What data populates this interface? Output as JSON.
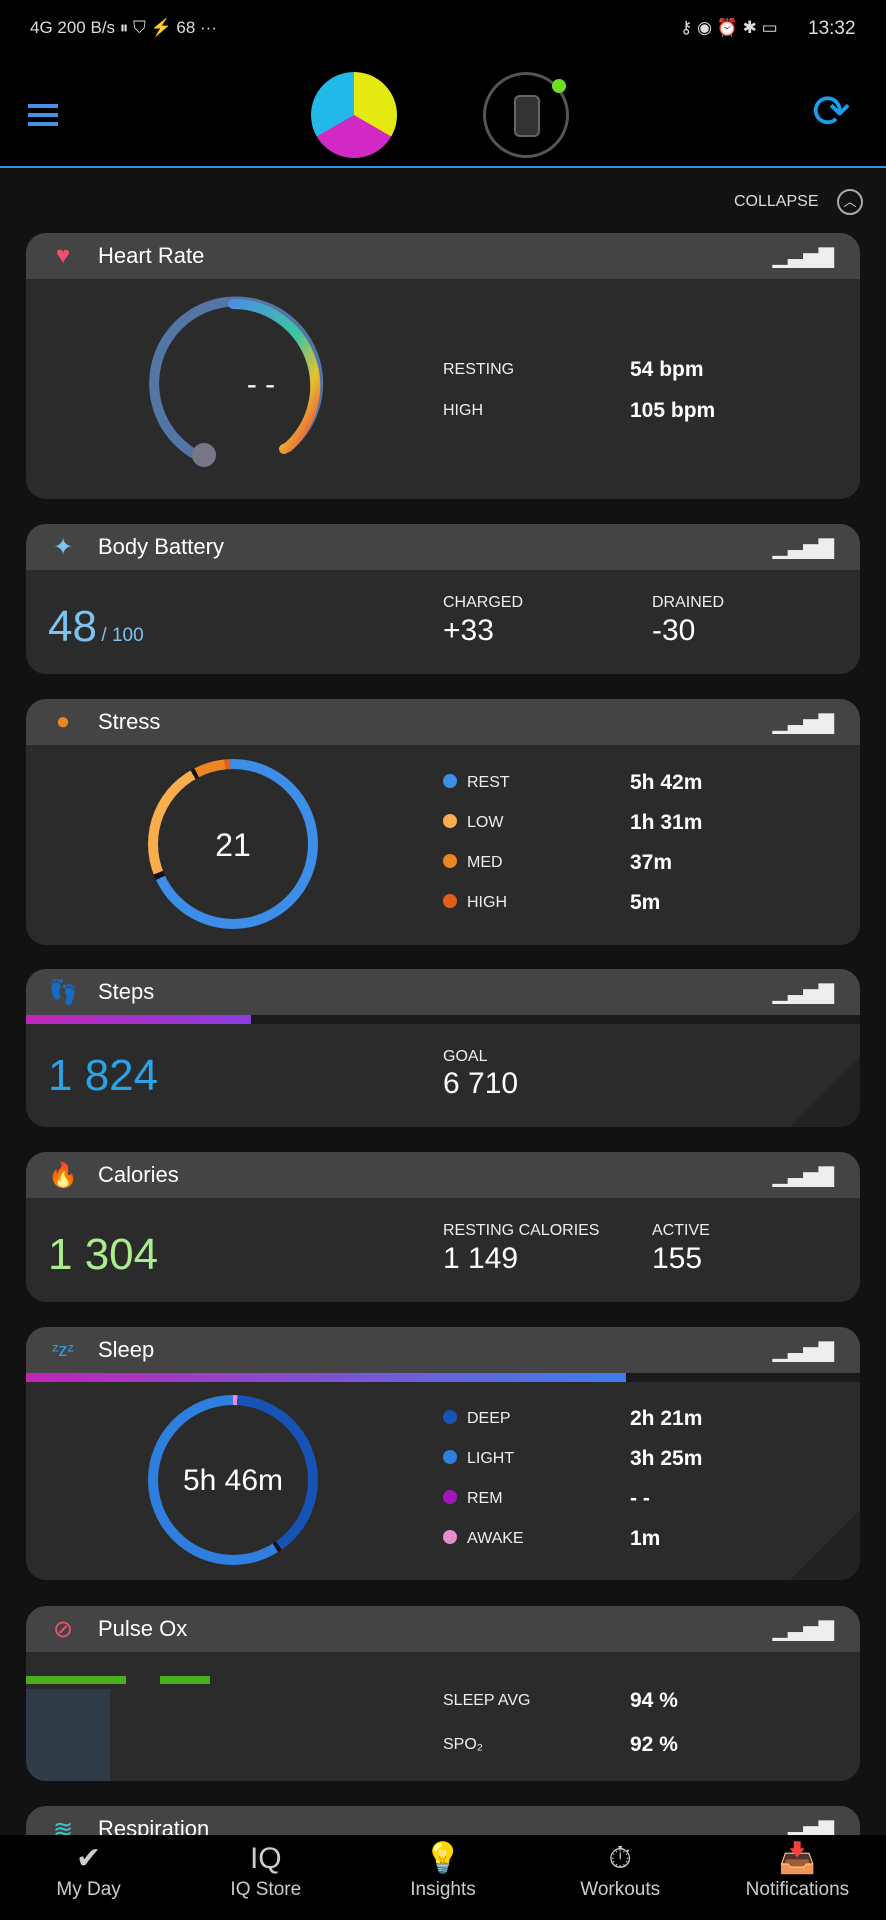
{
  "status": {
    "left": "4G  200 B/s  ⏸ ⛉ ⚡ 68 ···",
    "time": "13:32",
    "right_icons": "⚷ ◉ ⏰ ✱ ▭"
  },
  "header": {
    "menu_icon": "hamburger-icon",
    "sync_icon": "sync-icon"
  },
  "collapse": "COLLAPSE",
  "heart_rate": {
    "title": "Heart Rate",
    "current": "- -",
    "resting_label": "RESTING",
    "resting": "54 bpm",
    "high_label": "HIGH",
    "high": "105 bpm"
  },
  "body_battery": {
    "title": "Body Battery",
    "value": "48",
    "max": "/ 100",
    "charged_label": "CHARGED",
    "charged": "+33",
    "drained_label": "DRAINED",
    "drained": "-30"
  },
  "stress": {
    "title": "Stress",
    "value": "21",
    "rows": [
      {
        "label": "REST",
        "value": "5h 42m",
        "color": "#3d8ee8"
      },
      {
        "label": "LOW",
        "value": "1h 31m",
        "color": "#f9ad4c"
      },
      {
        "label": "MED",
        "value": "37m",
        "color": "#ef8423"
      },
      {
        "label": "HIGH",
        "value": "5m",
        "color": "#e0601a"
      }
    ]
  },
  "steps": {
    "title": "Steps",
    "value": "1 824",
    "goal_label": "GOAL",
    "goal": "6 710",
    "progress": 0.27
  },
  "calories": {
    "title": "Calories",
    "value": "1 304",
    "resting_label": "RESTING CALORIES",
    "resting": "1 149",
    "active_label": "ACTIVE",
    "active": "155"
  },
  "sleep": {
    "title": "Sleep",
    "value": "5h 46m",
    "progress": 0.72,
    "rows": [
      {
        "label": "DEEP",
        "value": "2h 21m",
        "color": "#1753b5"
      },
      {
        "label": "LIGHT",
        "value": "3h 25m",
        "color": "#2f7fe0"
      },
      {
        "label": "REM",
        "value": "- -",
        "color": "#a318b8"
      },
      {
        "label": "AWAKE",
        "value": "1m",
        "color": "#e88cd0"
      }
    ]
  },
  "pulse_ox": {
    "title": "Pulse Ox",
    "avg_label": "SLEEP AVG",
    "avg": "94 %",
    "spo2_label": "SPO₂",
    "spo2": "92 %"
  },
  "respiration": {
    "title": "Respiration"
  },
  "nav": [
    {
      "label": "My Day",
      "icon": "✔"
    },
    {
      "label": "IQ Store",
      "icon": "IQ"
    },
    {
      "label": "Insights",
      "icon": "💡"
    },
    {
      "label": "Workouts",
      "icon": "⏱"
    },
    {
      "label": "Notifications",
      "icon": "📥"
    }
  ]
}
